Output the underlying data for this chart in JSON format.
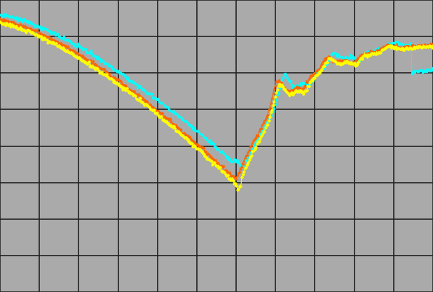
{
  "background_color": "#aaaaaa",
  "grid_color": "#222222",
  "line1_color": "#FF6600",
  "line2_color": "#00FFFF",
  "line3_color": "#FFFF00",
  "grid_nx": 11,
  "grid_ny": 8,
  "figsize": [
    6.18,
    4.17
  ],
  "dpi": 100
}
